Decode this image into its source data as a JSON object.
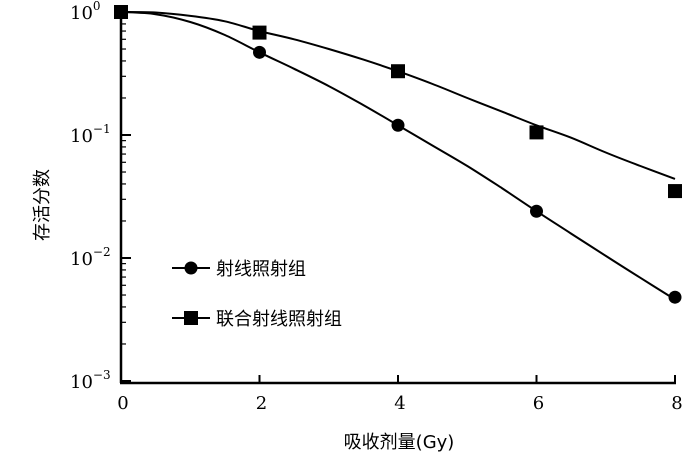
{
  "chart_data": {
    "type": "scatter",
    "title": "",
    "xlabel": "吸收剂量(Gy)",
    "ylabel": "存活分数",
    "x_ticks": [
      "0",
      "2",
      "4",
      "6",
      "8"
    ],
    "y_tick_labels": [
      {
        "base": "10",
        "exp": "0",
        "value": 1
      },
      {
        "base": "10",
        "exp": "−1",
        "value": 0.1
      },
      {
        "base": "10",
        "exp": "−2",
        "value": 0.01
      },
      {
        "base": "10",
        "exp": "−3",
        "value": 0.001
      }
    ],
    "xlim": [
      0,
      8
    ],
    "ylim": [
      0.001,
      1
    ],
    "y_scale": "log",
    "grid": false,
    "legend_position": "center-left",
    "series": [
      {
        "name": "射线照射组",
        "marker": "circle",
        "x": [
          0,
          2,
          4,
          6,
          8
        ],
        "y": [
          1.0,
          0.47,
          0.12,
          0.024,
          0.0048
        ],
        "fit_curve": [
          [
            0,
            1.0
          ],
          [
            0.5,
            0.96
          ],
          [
            1,
            0.83
          ],
          [
            1.5,
            0.65
          ],
          [
            2,
            0.47
          ],
          [
            2.5,
            0.345
          ],
          [
            3,
            0.25
          ],
          [
            3.5,
            0.175
          ],
          [
            4,
            0.12
          ],
          [
            4.5,
            0.082
          ],
          [
            5,
            0.056
          ],
          [
            5.5,
            0.037
          ],
          [
            6,
            0.024
          ],
          [
            6.5,
            0.0158
          ],
          [
            7,
            0.0104
          ],
          [
            7.5,
            0.0069
          ],
          [
            8,
            0.0046
          ]
        ]
      },
      {
        "name": "联合射线照射组",
        "marker": "square",
        "x": [
          0,
          2,
          4,
          6,
          8
        ],
        "y": [
          1.0,
          0.68,
          0.33,
          0.105,
          0.035
        ],
        "fit_curve": [
          [
            0,
            1.0
          ],
          [
            0.5,
            0.99
          ],
          [
            1,
            0.93
          ],
          [
            1.5,
            0.84
          ],
          [
            2,
            0.7
          ],
          [
            2.5,
            0.6
          ],
          [
            3,
            0.5
          ],
          [
            3.5,
            0.41
          ],
          [
            4,
            0.33
          ],
          [
            4.5,
            0.26
          ],
          [
            5,
            0.2
          ],
          [
            5.5,
            0.155
          ],
          [
            6,
            0.12
          ],
          [
            6.5,
            0.095
          ],
          [
            7,
            0.072
          ],
          [
            7.5,
            0.056
          ],
          [
            8,
            0.044
          ]
        ]
      }
    ]
  }
}
